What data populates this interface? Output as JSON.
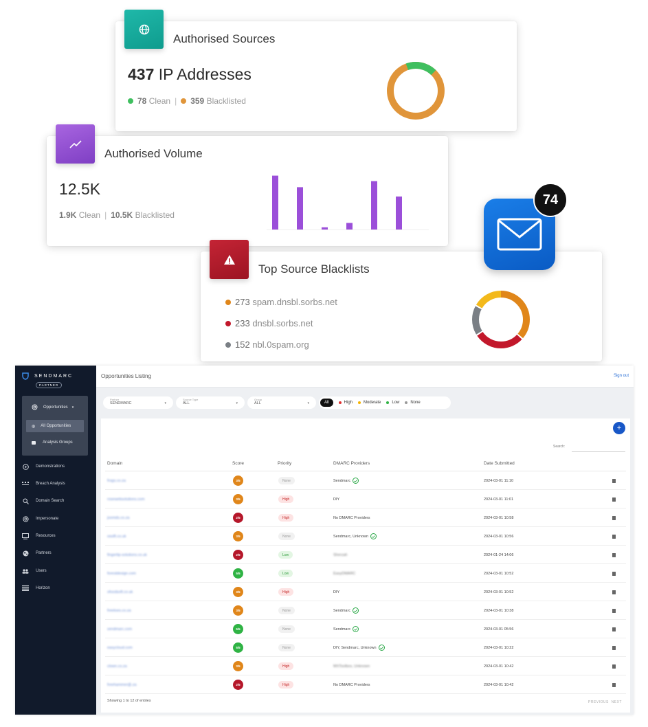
{
  "sources_card": {
    "title": "Authorised Sources",
    "count": "437",
    "count_unit": "IP Addresses",
    "clean_value": "78",
    "clean_label": "Clean",
    "blacklisted_value": "359",
    "blacklisted_label": "Blacklisted",
    "clean_color": "#3fbf5f",
    "blacklisted_color": "#e0953a",
    "icon": "globe-icon"
  },
  "volume_card": {
    "title": "Authorised Volume",
    "value": "12.5K",
    "clean_value": "1.9K",
    "clean_label": "Clean",
    "blacklisted_value": "10.5K",
    "blacklisted_label": "Blacklisted",
    "icon": "trending-up-icon",
    "bar_color": "#9b4fd9",
    "bar_levels": [
      0.98,
      0.77,
      0.04,
      0.12,
      0.88,
      0.6
    ]
  },
  "blacklists_card": {
    "title": "Top Source Blacklists",
    "icon": "warning-icon",
    "items": [
      {
        "count": "273",
        "name": "spam.dnsbl.sorbs.net",
        "color": "#e0861a"
      },
      {
        "count": "233",
        "name": "dnsbl.sorbs.net",
        "color": "#c2182b"
      },
      {
        "count": "152",
        "name": "nbl.0spam.org",
        "color": "#7a7f85"
      }
    ],
    "donut_extra_color": "#f3b91b"
  },
  "mail_badge": {
    "count": "74",
    "icon": "mail-icon"
  },
  "dashboard": {
    "brand": "SENDMARC",
    "brand_tag": "PARTNER",
    "page_title": "Opportunities Listing",
    "sign_out": "Sign out",
    "sidebar": {
      "opportunities_label": "Opportunities",
      "sub_items": [
        "All Opportunities",
        "Analysis Groups"
      ],
      "items": [
        {
          "label": "Demonstrations",
          "icon": "play-circle-icon"
        },
        {
          "label": "Breach Analysis",
          "icon": "dots-icon"
        },
        {
          "label": "Domain Search",
          "icon": "search-icon"
        },
        {
          "label": "Impersonate",
          "icon": "fingerprint-icon"
        },
        {
          "label": "Resources",
          "icon": "monitor-icon"
        },
        {
          "label": "Partners",
          "icon": "globe-icon"
        },
        {
          "label": "Users",
          "icon": "users-icon"
        },
        {
          "label": "Horizon",
          "icon": "list-icon"
        }
      ]
    },
    "filters": {
      "partner_label": "Partner",
      "partner_value": "SENDMARC",
      "source_type_label": "Source Type",
      "source_type_value": "ALL",
      "group_label": "Group",
      "group_value": "ALL"
    },
    "priority_filter": {
      "all": "All",
      "options": [
        {
          "label": "High",
          "color": "#e03131"
        },
        {
          "label": "Moderate",
          "color": "#f5b400"
        },
        {
          "label": "Low",
          "color": "#2fb344"
        },
        {
          "label": "None",
          "color": "#999999"
        }
      ]
    },
    "search_label": "Search:",
    "columns": [
      "Domain",
      "Score",
      "Priority",
      "DMARC Providers",
      "Date Submitted"
    ],
    "rows": [
      {
        "domain": "frogs.co.za",
        "score": "3/5",
        "score_color": "#e0861a",
        "priority": "None",
        "providers": "Sendmarc",
        "providers_check": true,
        "providers_blur": false,
        "date": "2024-03-01 11:10"
      },
      {
        "domain": "rosewebsolutions.com",
        "score": "3/5",
        "score_color": "#e0861a",
        "priority": "High",
        "providers": "DIY",
        "providers_check": false,
        "providers_blur": false,
        "date": "2024-03-01 11:01"
      },
      {
        "domain": "joomds.co.za",
        "score": "2/5",
        "score_color": "#b5172a",
        "priority": "High",
        "providers": "No DMARC Providers",
        "providers_check": false,
        "providers_blur": false,
        "date": "2024-03-01 10:58"
      },
      {
        "domain": "ossift.co.uk",
        "score": "3/5",
        "score_color": "#e0861a",
        "priority": "None",
        "providers": "Sendmarc, Unknown",
        "providers_check": true,
        "providers_blur": false,
        "date": "2024-03-01 10:56"
      },
      {
        "domain": "fingertip-solutions.co.uk",
        "score": "2/5",
        "score_color": "#b5172a",
        "priority": "Low",
        "providers": "Sherzah",
        "providers_check": false,
        "providers_blur": true,
        "date": "2024-01-24 14:06"
      },
      {
        "domain": "forestdesign.com",
        "score": "5/5",
        "score_color": "#2fb344",
        "priority": "Low",
        "providers": "EasyDMARC",
        "providers_check": false,
        "providers_blur": true,
        "date": "2024-03-01 10:52"
      },
      {
        "domain": "ofoodsoft.co.uk",
        "score": "3/5",
        "score_color": "#e0861a",
        "priority": "High",
        "providers": "DIY",
        "providers_check": false,
        "providers_blur": false,
        "date": "2024-03-01 10:52"
      },
      {
        "domain": "freetoes.co.za",
        "score": "3/5",
        "score_color": "#e0861a",
        "priority": "None",
        "providers": "Sendmarc",
        "providers_check": true,
        "providers_blur": false,
        "date": "2024-03-01 10:38"
      },
      {
        "domain": "sendmarc.com",
        "score": "5/5",
        "score_color": "#2fb344",
        "priority": "None",
        "providers": "Sendmarc",
        "providers_check": true,
        "providers_blur": false,
        "date": "2024-03-01 05:56"
      },
      {
        "domain": "easycloud.com",
        "score": "5/5",
        "score_color": "#2fb344",
        "priority": "None",
        "providers": "DIY, Sendmarc, Unknown",
        "providers_check": true,
        "providers_blur": false,
        "date": "2024-03-01 10:22"
      },
      {
        "domain": "clown.co.za",
        "score": "3/5",
        "score_color": "#e0861a",
        "priority": "High",
        "providers": "MXToolbox, Unknown",
        "providers_check": false,
        "providers_blur": true,
        "date": "2024-03-01 10:42"
      },
      {
        "domain": "freehammer@.za",
        "score": "2/5",
        "score_color": "#b5172a",
        "priority": "High",
        "providers": "No DMARC Providers",
        "providers_check": false,
        "providers_blur": false,
        "date": "2024-03-01 10:42"
      }
    ],
    "footer": "Showing 1 to 12 of entries",
    "pager_prev": "PREVIOUS",
    "pager_next": "NEXT"
  }
}
